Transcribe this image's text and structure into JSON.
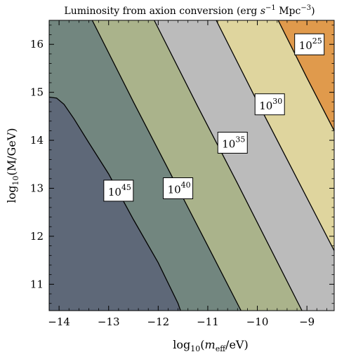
{
  "chart_data": {
    "type": "heatmap",
    "subtype": "filled-contour",
    "title_parts": [
      "Luminosity from axion conversion  (erg ",
      "s",
      "−1",
      " Mpc",
      "−3",
      ")"
    ],
    "xlabel_parts": [
      "log",
      "10",
      "(",
      "m",
      "eff",
      "/eV)"
    ],
    "ylabel_parts": [
      "log",
      "10",
      "(M/GeV)"
    ],
    "xlim": [
      -14.2,
      -8.45
    ],
    "ylim": [
      10.45,
      16.5
    ],
    "xticks": [
      -14,
      -13,
      -12,
      -11,
      -10,
      -9
    ],
    "yticks": [
      11,
      12,
      13,
      14,
      15,
      16
    ],
    "xtick_labels": [
      "−14",
      "−13",
      "−12",
      "−11",
      "−10",
      "−9"
    ],
    "ytick_labels": [
      "11",
      "12",
      "13",
      "14",
      "15",
      "16"
    ],
    "grid": false,
    "regions": [
      {
        "id": "r45",
        "color": "#5e6878"
      },
      {
        "id": "r40",
        "color": "#72867f"
      },
      {
        "id": "r35",
        "color": "#aab38b"
      },
      {
        "id": "r30",
        "color": "#bbbbbb"
      },
      {
        "id": "r25",
        "color": "#dfd59e"
      },
      {
        "id": "rtop",
        "color": "#e09a4c"
      }
    ],
    "contours": [
      {
        "id": "c45",
        "label_base": "10",
        "label_exp": "45",
        "points": [
          [
            -14.2,
            14.9
          ],
          [
            -14.05,
            14.88
          ],
          [
            -13.9,
            14.75
          ],
          [
            -13.7,
            14.45
          ],
          [
            -13.4,
            13.95
          ],
          [
            -13.0,
            13.3
          ],
          [
            -12.5,
            12.35
          ],
          [
            -12.0,
            11.45
          ],
          [
            -11.6,
            10.6
          ],
          [
            -11.55,
            10.45
          ]
        ],
        "label_at": [
          -12.8,
          12.95
        ]
      },
      {
        "id": "c40",
        "label_base": "10",
        "label_exp": "40",
        "points": [
          [
            -13.33,
            16.5
          ],
          [
            -12.5,
            14.8
          ],
          [
            -11.8,
            13.4
          ],
          [
            -11.0,
            11.8
          ],
          [
            -10.33,
            10.45
          ]
        ],
        "label_at": [
          -11.6,
          13.0
        ]
      },
      {
        "id": "c35",
        "label_base": "10",
        "label_exp": "35",
        "points": [
          [
            -12.08,
            16.5
          ],
          [
            -11.2,
            14.7
          ],
          [
            -10.4,
            13.1
          ],
          [
            -9.1,
            10.45
          ]
        ],
        "label_at": [
          -10.5,
          13.95
        ]
      },
      {
        "id": "c30",
        "label_base": "10",
        "label_exp": "30",
        "points": [
          [
            -10.83,
            16.5
          ],
          [
            -10.0,
            14.8
          ],
          [
            -9.3,
            13.4
          ],
          [
            -8.45,
            11.7
          ]
        ],
        "label_at": [
          -9.75,
          14.75
        ]
      },
      {
        "id": "c25",
        "label_base": "10",
        "label_exp": "25",
        "points": [
          [
            -9.58,
            16.5
          ],
          [
            -9.0,
            15.3
          ],
          [
            -8.45,
            14.2
          ]
        ],
        "label_at": [
          -8.95,
          16.0
        ]
      }
    ]
  }
}
